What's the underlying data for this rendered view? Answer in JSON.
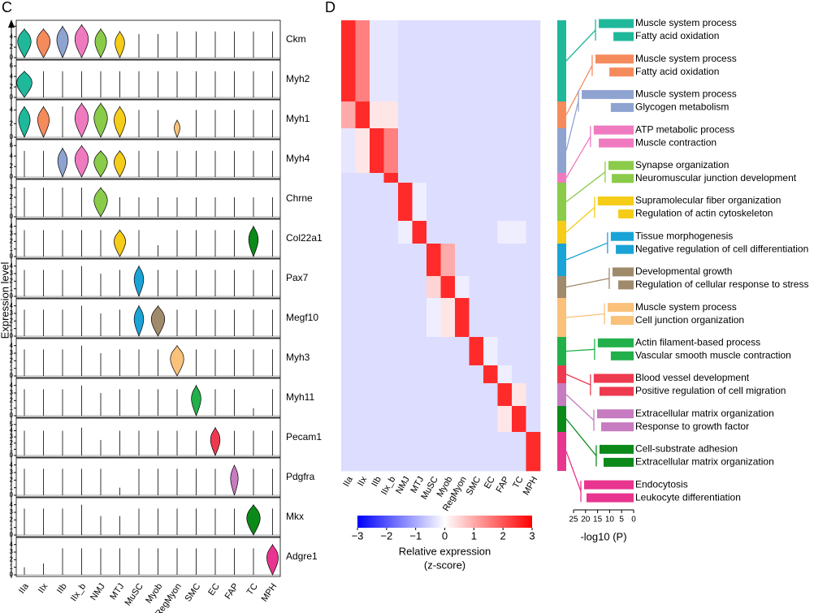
{
  "chart_data": [
    {
      "type": "violin",
      "panel": "C",
      "ylabel": "Expression level",
      "categories": [
        "IIa",
        "IIx",
        "IIb",
        "IIx_b",
        "NMJ",
        "MTJ",
        "MuSC",
        "Myob",
        "RegMyon",
        "SMC",
        "EC",
        "FAP",
        "TC",
        "MPH"
      ],
      "colors": [
        "#1fb89a",
        "#f58b5c",
        "#8fa3d1",
        "#f07ac0",
        "#8acb4a",
        "#f5cc17",
        "#1aa3d6",
        "#a08a6c",
        "#f9c17a",
        "#22b04a",
        "#ee3a4f",
        "#c77bc0",
        "#0b8a1a",
        "#e8358f"
      ],
      "genes": [
        {
          "name": "Ckm",
          "ylim": [
            0,
            6.5
          ],
          "yticks": [
            0,
            2,
            4,
            6
          ],
          "values": [
            5.5,
            5.5,
            6,
            6.3,
            5.5,
            5,
            4.5,
            4.5,
            5,
            5,
            5,
            5,
            5,
            5
          ],
          "widths": [
            0.7,
            0.7,
            0.6,
            0.7,
            0.6,
            0.5,
            0,
            0,
            0,
            0,
            0,
            0,
            0,
            0
          ]
        },
        {
          "name": "Myh2",
          "ylim": [
            0,
            6.5
          ],
          "yticks": [
            0,
            2,
            4,
            6
          ],
          "values": [
            5,
            5,
            5,
            5,
            5,
            5,
            5,
            5,
            5,
            5,
            5,
            5,
            5,
            5
          ],
          "widths": [
            0.8,
            0,
            0,
            0,
            0,
            0,
            0,
            0,
            0,
            0,
            0,
            0,
            0,
            0
          ]
        },
        {
          "name": "Myh1",
          "ylim": [
            0,
            5
          ],
          "yticks": [
            0,
            2,
            4
          ],
          "values": [
            4.5,
            4.5,
            4.5,
            5,
            5,
            4.5,
            4,
            4,
            2.5,
            4,
            4,
            4,
            4,
            4
          ],
          "widths": [
            0.6,
            0.6,
            0,
            0.7,
            0.7,
            0.6,
            0,
            0,
            0.3,
            0,
            0,
            0,
            0,
            0
          ]
        },
        {
          "name": "Myh4",
          "ylim": [
            0,
            6.5
          ],
          "yticks": [
            0,
            2,
            4,
            6
          ],
          "values": [
            5,
            5,
            5.5,
            6,
            5,
            5,
            5,
            5,
            5,
            5,
            5,
            5,
            5,
            5
          ],
          "widths": [
            0,
            0,
            0.5,
            0.7,
            0.7,
            0.6,
            0,
            0,
            0,
            0,
            0,
            0,
            0,
            0
          ]
        },
        {
          "name": "Chrne",
          "ylim": [
            0,
            3.5
          ],
          "yticks": [
            0,
            1,
            2,
            3
          ],
          "values": [
            3,
            3,
            3,
            3,
            3,
            2,
            2,
            2,
            2,
            2,
            2,
            2,
            2,
            2
          ],
          "widths": [
            0,
            0,
            0,
            0,
            0.7,
            0,
            0,
            0,
            0,
            0,
            0,
            0,
            0,
            0
          ]
        },
        {
          "name": "Col22a1",
          "ylim": [
            0,
            4.5
          ],
          "yticks": [
            0,
            1,
            2,
            3,
            4
          ],
          "values": [
            3.5,
            3.5,
            3.5,
            3.5,
            3.5,
            3.5,
            3.5,
            1.5,
            3.5,
            3.5,
            3.5,
            3.5,
            4,
            3.5
          ],
          "widths": [
            0,
            0,
            0,
            0,
            0,
            0.6,
            0,
            0,
            0,
            0,
            0,
            0,
            0.5,
            0
          ]
        },
        {
          "name": "Pax7",
          "ylim": [
            0,
            4.5
          ],
          "yticks": [
            0,
            1,
            2,
            3,
            4
          ],
          "values": [
            3.5,
            3.5,
            3.5,
            4,
            3,
            3.5,
            4,
            3.5,
            3.5,
            3.5,
            3.5,
            3.5,
            3.5,
            3.5
          ],
          "widths": [
            0,
            0,
            0,
            0,
            0,
            0,
            0.5,
            0,
            0,
            0,
            0,
            0,
            0,
            0
          ]
        },
        {
          "name": "Megf10",
          "ylim": [
            0,
            4.5
          ],
          "yticks": [
            0,
            1,
            2,
            3,
            4
          ],
          "values": [
            3.5,
            3.5,
            3.5,
            4,
            3,
            3.5,
            4,
            4,
            3.5,
            3.5,
            3.5,
            3.5,
            3.5,
            3.5
          ],
          "widths": [
            0,
            0,
            0,
            0,
            0,
            0,
            0.5,
            0.7,
            0,
            0,
            0,
            0,
            0,
            0
          ]
        },
        {
          "name": "Myh3",
          "ylim": [
            0,
            4.5
          ],
          "yticks": [
            0,
            1,
            2,
            3,
            4
          ],
          "values": [
            3.5,
            3.5,
            3.5,
            4,
            3,
            3.5,
            3.5,
            3.5,
            4,
            3.5,
            3.5,
            3.5,
            3.5,
            3.5
          ],
          "widths": [
            0,
            0,
            0,
            0,
            0,
            0,
            0,
            0,
            0.7,
            0,
            0,
            0,
            0,
            0
          ]
        },
        {
          "name": "Myh11",
          "ylim": [
            0,
            4.5
          ],
          "yticks": [
            0,
            1,
            2,
            3,
            4
          ],
          "values": [
            3.5,
            3.5,
            3.5,
            4,
            3,
            3.5,
            3.5,
            3.5,
            3.5,
            4,
            3.5,
            3.5,
            1,
            3.5
          ],
          "widths": [
            0,
            0,
            0,
            0,
            0,
            0,
            0,
            0,
            0,
            0.5,
            0,
            0,
            0,
            0
          ]
        },
        {
          "name": "Pecam1",
          "ylim": [
            0,
            5.5
          ],
          "yticks": [
            0,
            1,
            2,
            3,
            4,
            5
          ],
          "values": [
            4,
            4,
            4,
            4.5,
            2.5,
            4,
            4,
            4,
            4,
            4,
            4.5,
            4,
            4,
            4
          ],
          "widths": [
            0,
            0,
            0,
            0,
            0,
            0,
            0,
            0,
            0,
            0,
            0.5,
            0,
            0,
            0
          ]
        },
        {
          "name": "Pdgfra",
          "ylim": [
            0,
            4.5
          ],
          "yticks": [
            0,
            1,
            2,
            3,
            4
          ],
          "values": [
            3.5,
            3.5,
            3.5,
            3.5,
            3.5,
            1,
            3.5,
            3.5,
            3.5,
            3.5,
            3.5,
            4,
            3.5,
            3.5
          ],
          "widths": [
            0,
            0,
            0,
            0,
            0,
            0,
            0,
            0,
            0,
            0,
            0,
            0.4,
            0,
            0
          ]
        },
        {
          "name": "Mkx",
          "ylim": [
            0,
            4.5
          ],
          "yticks": [
            0,
            1,
            2,
            3,
            4
          ],
          "values": [
            3.5,
            3.5,
            3.5,
            4,
            2.5,
            2.5,
            3.5,
            3.5,
            3.5,
            3.5,
            3.5,
            3.5,
            4,
            3.5
          ],
          "widths": [
            0,
            0,
            0,
            0,
            0,
            0,
            0,
            0,
            0,
            0,
            0,
            0,
            0.7,
            0
          ]
        },
        {
          "name": "Adgre1",
          "ylim": [
            0,
            4.5
          ],
          "yticks": [
            0,
            1,
            2,
            3,
            4
          ],
          "values": [
            1,
            1.5,
            3.5,
            3.5,
            3.5,
            3.5,
            3.5,
            3.5,
            3.5,
            3.5,
            3.5,
            3.5,
            3.5,
            4
          ],
          "widths": [
            0,
            0,
            0,
            0,
            0,
            0,
            0,
            0,
            0,
            0,
            0,
            0,
            0,
            0.6
          ]
        }
      ]
    },
    {
      "type": "heatmap",
      "panel": "D",
      "columns": [
        "IIa",
        "IIx",
        "IIb",
        "IIx_b",
        "NMJ",
        "MTJ",
        "MuSC",
        "Myob",
        "RegMyon",
        "SMC",
        "EC",
        "FAP",
        "TC",
        "MPH"
      ],
      "row_sizes": [
        100,
        33,
        55,
        12,
        47,
        28,
        40,
        27,
        48,
        35,
        22,
        28,
        32,
        48
      ],
      "matrix": [
        [
          2.5,
          1.5,
          -0.3,
          -0.3,
          -0.4,
          -0.4,
          -0.4,
          -0.4,
          -0.4,
          -0.4,
          -0.4,
          -0.4,
          -0.4,
          -0.4
        ],
        [
          1,
          2.5,
          0.3,
          0.3,
          -0.4,
          -0.4,
          -0.4,
          -0.4,
          -0.4,
          -0.4,
          -0.4,
          -0.4,
          -0.4,
          -0.4
        ],
        [
          -0.3,
          0.3,
          2.5,
          1.5,
          -0.4,
          -0.4,
          -0.4,
          -0.4,
          -0.4,
          -0.4,
          -0.4,
          -0.4,
          -0.4,
          -0.4
        ],
        [
          -0.4,
          -0.4,
          -0.4,
          2.5,
          -0.4,
          -0.4,
          -0.4,
          -0.4,
          -0.4,
          -0.4,
          -0.4,
          -0.4,
          -0.4,
          -0.4
        ],
        [
          -0.4,
          -0.4,
          -0.4,
          -0.4,
          2.5,
          -0.2,
          -0.4,
          -0.4,
          -0.4,
          -0.4,
          -0.4,
          -0.4,
          -0.4,
          -0.4
        ],
        [
          -0.4,
          -0.4,
          -0.4,
          -0.4,
          -0.2,
          2.5,
          -0.4,
          -0.4,
          -0.4,
          -0.4,
          -0.4,
          -0.2,
          -0.2,
          -0.4
        ],
        [
          -0.4,
          -0.4,
          -0.4,
          -0.4,
          -0.4,
          -0.4,
          2.5,
          1,
          -0.4,
          -0.4,
          -0.4,
          -0.4,
          -0.4,
          -0.4
        ],
        [
          -0.4,
          -0.4,
          -0.4,
          -0.4,
          -0.4,
          -0.4,
          0.5,
          2.5,
          -0.2,
          -0.4,
          -0.4,
          -0.4,
          -0.4,
          -0.4
        ],
        [
          -0.4,
          -0.4,
          -0.4,
          -0.4,
          -0.4,
          -0.4,
          -0.2,
          0.3,
          2.5,
          -0.4,
          -0.4,
          -0.4,
          -0.4,
          -0.4
        ],
        [
          -0.4,
          -0.4,
          -0.4,
          -0.4,
          -0.4,
          -0.4,
          -0.4,
          -0.4,
          -0.4,
          2.5,
          -0.2,
          -0.4,
          -0.4,
          -0.4
        ],
        [
          -0.4,
          -0.4,
          -0.4,
          -0.4,
          -0.4,
          -0.4,
          -0.4,
          -0.4,
          -0.4,
          -0.4,
          2.5,
          -0.2,
          -0.4,
          -0.4
        ],
        [
          -0.4,
          -0.4,
          -0.4,
          -0.4,
          -0.4,
          -0.4,
          -0.4,
          -0.4,
          -0.4,
          -0.4,
          -0.4,
          2.5,
          0.3,
          -0.4
        ],
        [
          -0.4,
          -0.4,
          -0.4,
          -0.4,
          -0.4,
          -0.4,
          -0.4,
          -0.4,
          -0.4,
          -0.4,
          -0.4,
          0.3,
          2.5,
          -0.4
        ],
        [
          -0.4,
          -0.4,
          -0.4,
          -0.4,
          -0.4,
          -0.4,
          -0.4,
          -0.4,
          -0.4,
          -0.4,
          -0.4,
          -0.4,
          -0.4,
          2.5
        ]
      ],
      "colorscale": [
        "#0000ff",
        "#ffffff",
        "#ff0000"
      ],
      "zlim": [
        -3,
        3
      ],
      "zticks": [
        {
          "value": -3,
          "label": "−3"
        },
        {
          "value": -2,
          "label": "−2"
        },
        {
          "value": -1,
          "label": "−1"
        },
        0,
        1,
        2,
        3
      ],
      "zlabel": [
        "Relative expression",
        "(z-score)"
      ]
    },
    {
      "type": "bar",
      "xlim": [
        25,
        0
      ],
      "xticks": [
        25,
        20,
        15,
        10,
        5,
        0
      ],
      "xlabel": "-log10 (P)",
      "groups": [
        {
          "color": "#1fb89a",
          "terms": [
            "Muscle system process",
            "Fatty acid oxidation"
          ],
          "values": [
            14.5,
            8.4
          ]
        },
        {
          "color": "#f58b5c",
          "terms": [
            "Muscle system process",
            "Fatty acid oxidation"
          ],
          "values": [
            15.9,
            10.1
          ]
        },
        {
          "color": "#8fa3d1",
          "terms": [
            "Muscle system process",
            "Glycogen metabolism"
          ],
          "values": [
            21.6,
            9.5
          ]
        },
        {
          "color": "#f07ac0",
          "terms": [
            "ATP metabolic process",
            "Muscle contraction"
          ],
          "values": [
            16.6,
            14.5
          ]
        },
        {
          "color": "#8acb4a",
          "terms": [
            "Synapse organization",
            "Neuromuscular junction development"
          ],
          "values": [
            10.5,
            9.1
          ]
        },
        {
          "color": "#f5cc17",
          "terms": [
            "Supramolecular fiber organization",
            "Regulation of actin cytoskeleton"
          ],
          "values": [
            14.9,
            6.4
          ]
        },
        {
          "color": "#1aa3d6",
          "terms": [
            "Tissue morphogenesis",
            "Negative regulation of cell differentiation"
          ],
          "values": [
            9.5,
            7.4
          ]
        },
        {
          "color": "#a08a6c",
          "terms": [
            "Developmental growth",
            "Regulation of cellular response to stress"
          ],
          "values": [
            8.8,
            6.4
          ]
        },
        {
          "color": "#f9c17a",
          "terms": [
            "Muscle system process",
            "Cell junction organization"
          ],
          "values": [
            10.8,
            9.5
          ]
        },
        {
          "color": "#22b04a",
          "terms": [
            "Actin filament-based process",
            "Vascular smooth muscle contraction"
          ],
          "values": [
            14.9,
            9.5
          ]
        },
        {
          "color": "#ee3a4f",
          "terms": [
            "Blood vessel development",
            "Positive regulation of cell migration"
          ],
          "values": [
            16.6,
            14.2
          ]
        },
        {
          "color": "#c77bc0",
          "terms": [
            "Extracellular matrix organization",
            "Response to growth factor"
          ],
          "values": [
            15.2,
            13.5
          ]
        },
        {
          "color": "#0b8a1a",
          "terms": [
            "Cell-substrate adhesion",
            "Extracellular matrix organization"
          ],
          "values": [
            14.2,
            12.5
          ]
        },
        {
          "color": "#e8358f",
          "terms": [
            "Endocytosis",
            "Leukocyte differentiation"
          ],
          "values": [
            20.6,
            19.6
          ]
        }
      ]
    }
  ]
}
